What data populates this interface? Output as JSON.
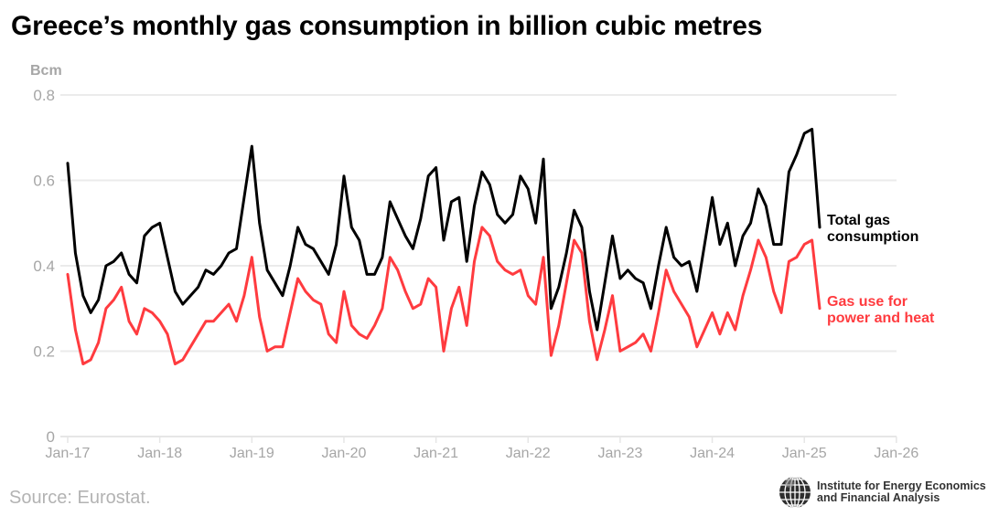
{
  "title": "Greece’s monthly gas consumption in billion cubic metres",
  "source": "Source: Eurostat.",
  "logo": {
    "icon": "globe-icon",
    "line1": "Institute for Energy Economics",
    "line2": "and Financial Analysis"
  },
  "chart_data": {
    "type": "line",
    "title": "Greece’s monthly gas consumption in billion cubic metres",
    "xlabel": "",
    "ylabel": "Bcm",
    "ylim": [
      0,
      0.8
    ],
    "yticks": [
      0,
      0.2,
      0.4,
      0.6,
      0.8
    ],
    "ytick_labels": [
      "0",
      "0.2",
      "0.4",
      "0.6",
      "0.8"
    ],
    "xlim": [
      "Jan-17",
      "Jan-26"
    ],
    "xtick_labels": [
      "Jan-17",
      "Jan-18",
      "Jan-19",
      "Jan-20",
      "Jan-21",
      "Jan-22",
      "Jan-23",
      "Jan-24",
      "Jan-25",
      "Jan-26"
    ],
    "x_start": "Jan-17",
    "x_step": "1 month",
    "grid": true,
    "legend_placement": "right (inline labels at line ends)",
    "series": [
      {
        "name": "Total gas consumption",
        "label_lines": [
          "Total gas",
          "consumption"
        ],
        "color": "#000000",
        "values": [
          0.64,
          0.43,
          0.33,
          0.29,
          0.32,
          0.4,
          0.41,
          0.43,
          0.38,
          0.36,
          0.47,
          0.49,
          0.5,
          0.42,
          0.34,
          0.31,
          0.33,
          0.35,
          0.39,
          0.38,
          0.4,
          0.43,
          0.44,
          0.56,
          0.68,
          0.5,
          0.39,
          0.36,
          0.33,
          0.4,
          0.49,
          0.45,
          0.44,
          0.41,
          0.38,
          0.45,
          0.61,
          0.49,
          0.46,
          0.38,
          0.38,
          0.42,
          0.55,
          0.51,
          0.47,
          0.44,
          0.51,
          0.61,
          0.63,
          0.46,
          0.55,
          0.56,
          0.41,
          0.54,
          0.62,
          0.59,
          0.52,
          0.5,
          0.52,
          0.61,
          0.58,
          0.5,
          0.65,
          0.3,
          0.35,
          0.43,
          0.53,
          0.49,
          0.34,
          0.25,
          0.36,
          0.47,
          0.37,
          0.39,
          0.37,
          0.36,
          0.3,
          0.4,
          0.49,
          0.42,
          0.4,
          0.41,
          0.34,
          0.45,
          0.56,
          0.45,
          0.5,
          0.4,
          0.47,
          0.5,
          0.58,
          0.54,
          0.45,
          0.45,
          0.62,
          0.66,
          0.71,
          0.72,
          0.49
        ]
      },
      {
        "name": "Gas use for power and heat",
        "label_lines": [
          "Gas use for",
          "power and heat"
        ],
        "color": "#ff3b3f",
        "values": [
          0.38,
          0.25,
          0.17,
          0.18,
          0.22,
          0.3,
          0.32,
          0.35,
          0.27,
          0.24,
          0.3,
          0.29,
          0.27,
          0.24,
          0.17,
          0.18,
          0.21,
          0.24,
          0.27,
          0.27,
          0.29,
          0.31,
          0.27,
          0.33,
          0.42,
          0.28,
          0.2,
          0.21,
          0.21,
          0.29,
          0.37,
          0.34,
          0.32,
          0.31,
          0.24,
          0.22,
          0.34,
          0.26,
          0.24,
          0.23,
          0.26,
          0.3,
          0.42,
          0.39,
          0.34,
          0.3,
          0.31,
          0.37,
          0.35,
          0.2,
          0.3,
          0.35,
          0.26,
          0.41,
          0.49,
          0.47,
          0.41,
          0.39,
          0.38,
          0.39,
          0.33,
          0.31,
          0.42,
          0.19,
          0.26,
          0.36,
          0.46,
          0.43,
          0.27,
          0.18,
          0.25,
          0.33,
          0.2,
          0.21,
          0.22,
          0.24,
          0.2,
          0.29,
          0.39,
          0.34,
          0.31,
          0.28,
          0.21,
          0.25,
          0.29,
          0.24,
          0.29,
          0.25,
          0.33,
          0.39,
          0.46,
          0.42,
          0.34,
          0.29,
          0.41,
          0.42,
          0.45,
          0.46,
          0.3
        ]
      }
    ]
  }
}
